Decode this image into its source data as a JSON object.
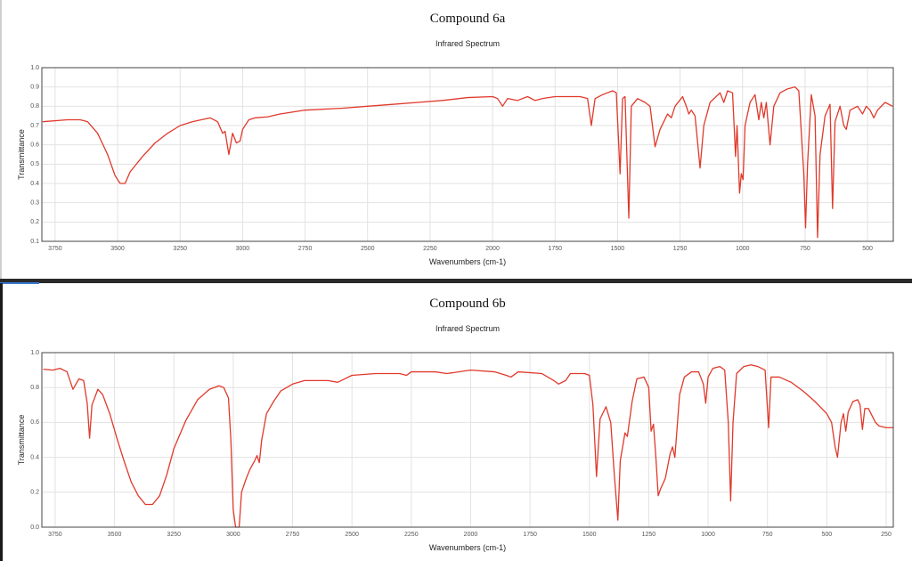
{
  "chart_data": [
    {
      "type": "line",
      "title": "Compound 6a",
      "subtitle": "Infrared Spectrum",
      "xlabel": "Wavenumbers (cm-1)",
      "ylabel": "Transmittance",
      "color": "#e0392b",
      "grid": true,
      "xlim": [
        3803,
        397
      ],
      "xticks": [
        3750,
        3500,
        3250,
        3000,
        2750,
        2500,
        2250,
        2000,
        1750,
        1500,
        1250,
        1000,
        750,
        500
      ],
      "ylim": [
        0.1,
        1.0
      ],
      "yticks": [
        0.1,
        0.2,
        0.3,
        0.4,
        0.5,
        0.6,
        0.7,
        0.8,
        0.9,
        {
          "value": 1,
          "label": "1.0"
        }
      ],
      "x": [
        3800,
        3700,
        3650,
        3620,
        3580,
        3540,
        3510,
        3490,
        3470,
        3450,
        3400,
        3350,
        3300,
        3250,
        3200,
        3130,
        3100,
        3080,
        3070,
        3055,
        3040,
        3025,
        3010,
        3000,
        2975,
        2950,
        2900,
        2850,
        2750,
        2600,
        2500,
        2400,
        2300,
        2200,
        2100,
        2000,
        1980,
        1960,
        1940,
        1900,
        1860,
        1830,
        1800,
        1750,
        1700,
        1650,
        1620,
        1605,
        1590,
        1560,
        1520,
        1505,
        1490,
        1480,
        1470,
        1455,
        1445,
        1420,
        1390,
        1370,
        1350,
        1330,
        1300,
        1285,
        1270,
        1240,
        1225,
        1215,
        1205,
        1190,
        1170,
        1155,
        1130,
        1090,
        1075,
        1060,
        1040,
        1028,
        1022,
        1012,
        1005,
        998,
        990,
        970,
        950,
        935,
        925,
        915,
        905,
        890,
        875,
        850,
        820,
        790,
        775,
        755,
        748,
        740,
        725,
        710,
        700,
        690,
        670,
        650,
        640,
        630,
        610,
        595,
        585,
        570,
        540,
        520,
        505,
        490,
        475,
        460,
        430,
        400
      ],
      "values": [
        0.72,
        0.73,
        0.73,
        0.72,
        0.66,
        0.55,
        0.44,
        0.4,
        0.4,
        0.46,
        0.54,
        0.61,
        0.66,
        0.7,
        0.72,
        0.74,
        0.72,
        0.66,
        0.67,
        0.55,
        0.66,
        0.61,
        0.62,
        0.68,
        0.73,
        0.74,
        0.745,
        0.76,
        0.78,
        0.79,
        0.8,
        0.81,
        0.82,
        0.83,
        0.845,
        0.85,
        0.84,
        0.8,
        0.84,
        0.83,
        0.85,
        0.83,
        0.84,
        0.85,
        0.85,
        0.85,
        0.84,
        0.7,
        0.84,
        0.86,
        0.88,
        0.87,
        0.45,
        0.84,
        0.85,
        0.22,
        0.8,
        0.84,
        0.82,
        0.8,
        0.59,
        0.68,
        0.76,
        0.74,
        0.8,
        0.85,
        0.8,
        0.76,
        0.78,
        0.75,
        0.48,
        0.7,
        0.82,
        0.87,
        0.82,
        0.88,
        0.87,
        0.54,
        0.7,
        0.35,
        0.45,
        0.42,
        0.7,
        0.82,
        0.86,
        0.73,
        0.82,
        0.74,
        0.82,
        0.6,
        0.8,
        0.87,
        0.89,
        0.9,
        0.88,
        0.45,
        0.17,
        0.5,
        0.86,
        0.75,
        0.12,
        0.55,
        0.75,
        0.81,
        0.27,
        0.72,
        0.8,
        0.7,
        0.68,
        0.78,
        0.8,
        0.76,
        0.8,
        0.78,
        0.74,
        0.78,
        0.82,
        0.8
      ]
    },
    {
      "type": "line",
      "title": "Compound 6b",
      "subtitle": "Infrared Spectrum",
      "xlabel": "Wavenumbers (cm-1)",
      "ylabel": "Transmittance",
      "color": "#e0392b",
      "grid": true,
      "xlim": [
        3806,
        220
      ],
      "xticks": [
        3750,
        3500,
        3250,
        3000,
        2750,
        2500,
        2250,
        2000,
        1750,
        1500,
        1250,
        1000,
        750,
        500,
        250
      ],
      "ylim": [
        0,
        1.0
      ],
      "yticks": [
        {
          "value": 0,
          "label": "0.0"
        },
        0.2,
        0.4,
        0.6,
        0.8,
        {
          "value": 1,
          "label": "1.0"
        }
      ],
      "x": [
        3800,
        3760,
        3730,
        3700,
        3675,
        3650,
        3630,
        3615,
        3605,
        3595,
        3570,
        3550,
        3520,
        3490,
        3460,
        3430,
        3400,
        3370,
        3340,
        3310,
        3280,
        3250,
        3200,
        3150,
        3100,
        3060,
        3040,
        3020,
        3010,
        3000,
        2990,
        2975,
        2965,
        2955,
        2945,
        2930,
        2910,
        2900,
        2890,
        2880,
        2860,
        2830,
        2800,
        2750,
        2700,
        2600,
        2560,
        2500,
        2400,
        2300,
        2270,
        2250,
        2150,
        2100,
        2000,
        1900,
        1850,
        1830,
        1800,
        1700,
        1650,
        1630,
        1600,
        1580,
        1520,
        1500,
        1485,
        1470,
        1455,
        1430,
        1410,
        1395,
        1380,
        1370,
        1350,
        1340,
        1320,
        1300,
        1270,
        1250,
        1240,
        1230,
        1220,
        1210,
        1200,
        1180,
        1160,
        1150,
        1140,
        1120,
        1100,
        1070,
        1040,
        1020,
        1010,
        1000,
        980,
        950,
        930,
        915,
        905,
        895,
        880,
        850,
        820,
        790,
        760,
        745,
        735,
        700,
        650,
        600,
        550,
        500,
        480,
        465,
        455,
        440,
        430,
        420,
        410,
        390,
        370,
        360,
        350,
        340,
        325,
        310,
        295,
        280,
        250,
        220
      ],
      "values": [
        0.905,
        0.9,
        0.91,
        0.89,
        0.79,
        0.85,
        0.84,
        0.71,
        0.51,
        0.7,
        0.79,
        0.76,
        0.65,
        0.51,
        0.38,
        0.26,
        0.18,
        0.13,
        0.13,
        0.18,
        0.3,
        0.45,
        0.61,
        0.73,
        0.79,
        0.81,
        0.8,
        0.74,
        0.5,
        0.1,
        0.0,
        0.0,
        0.2,
        0.24,
        0.28,
        0.33,
        0.38,
        0.41,
        0.37,
        0.5,
        0.65,
        0.72,
        0.78,
        0.82,
        0.84,
        0.84,
        0.83,
        0.87,
        0.88,
        0.88,
        0.87,
        0.89,
        0.89,
        0.88,
        0.9,
        0.89,
        0.87,
        0.86,
        0.89,
        0.88,
        0.84,
        0.82,
        0.84,
        0.88,
        0.88,
        0.87,
        0.7,
        0.29,
        0.62,
        0.69,
        0.6,
        0.3,
        0.04,
        0.38,
        0.54,
        0.52,
        0.72,
        0.85,
        0.86,
        0.8,
        0.55,
        0.59,
        0.4,
        0.18,
        0.22,
        0.28,
        0.42,
        0.46,
        0.4,
        0.76,
        0.86,
        0.89,
        0.89,
        0.82,
        0.71,
        0.86,
        0.91,
        0.92,
        0.9,
        0.6,
        0.15,
        0.6,
        0.88,
        0.92,
        0.93,
        0.92,
        0.9,
        0.57,
        0.86,
        0.86,
        0.83,
        0.78,
        0.72,
        0.65,
        0.6,
        0.46,
        0.4,
        0.6,
        0.65,
        0.55,
        0.66,
        0.72,
        0.73,
        0.7,
        0.56,
        0.68,
        0.68,
        0.64,
        0.6,
        0.58,
        0.57,
        0.57
      ]
    }
  ]
}
